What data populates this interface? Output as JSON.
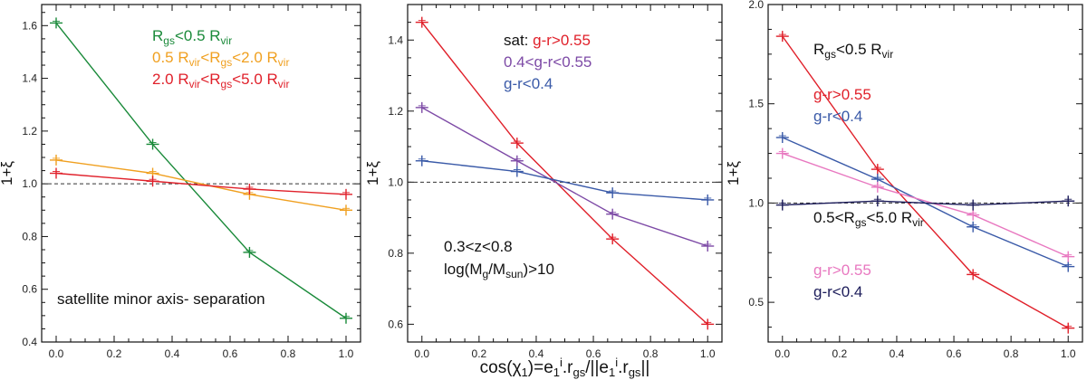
{
  "chart_data": [
    {
      "type": "line",
      "ylabel": "1+ξ",
      "x": [
        0.0,
        0.333,
        0.667,
        1.0
      ],
      "xticks": [
        "0.0",
        "0.2",
        "0.4",
        "0.6",
        "0.8",
        "1.0"
      ],
      "xtick_values": [
        0.0,
        0.2,
        0.4,
        0.6,
        0.8,
        1.0
      ],
      "xlim": [
        -0.05,
        1.05
      ],
      "ylim": [
        0.4,
        1.68
      ],
      "yticks": [
        "0.4",
        "0.6",
        "0.8",
        "1.0",
        "1.2",
        "1.4",
        "1.6"
      ],
      "ytick_values": [
        0.4,
        0.6,
        0.8,
        1.0,
        1.2,
        1.4,
        1.6
      ],
      "reference_line": 1.0,
      "series": [
        {
          "name": "Rgs<0.5 Rvir",
          "color": "#1a8a3a",
          "values": [
            1.61,
            1.15,
            0.74,
            0.49
          ]
        },
        {
          "name": "0.5 Rvir<Rgs<2.0 Rvir",
          "color": "#f0a020",
          "values": [
            1.09,
            1.04,
            0.96,
            0.9
          ]
        },
        {
          "name": "2.0 Rvir<Rgs<5.0 Rvir",
          "color": "#e0202a",
          "values": [
            1.04,
            1.01,
            0.98,
            0.96
          ]
        }
      ],
      "legend_lines": [
        {
          "parts": [
            {
              "t": "R",
              "c": "#1a8a3a"
            },
            {
              "t": "gs",
              "sub": true,
              "c": "#1a8a3a"
            },
            {
              "t": "<0.5 R",
              "c": "#1a8a3a"
            },
            {
              "t": "vir",
              "sub": true,
              "c": "#1a8a3a"
            }
          ]
        },
        {
          "parts": [
            {
              "t": "0.5 R",
              "c": "#f0a020"
            },
            {
              "t": "vir",
              "sub": true,
              "c": "#f0a020"
            },
            {
              "t": "<R",
              "c": "#f0a020"
            },
            {
              "t": "gs",
              "sub": true,
              "c": "#f0a020"
            },
            {
              "t": "<2.0 R",
              "c": "#f0a020"
            },
            {
              "t": "vir",
              "sub": true,
              "c": "#f0a020"
            }
          ]
        },
        {
          "parts": [
            {
              "t": "2.0 R",
              "c": "#e0202a"
            },
            {
              "t": "vir",
              "sub": true,
              "c": "#e0202a"
            },
            {
              "t": "<R",
              "c": "#e0202a"
            },
            {
              "t": "gs",
              "sub": true,
              "c": "#e0202a"
            },
            {
              "t": "<5.0 R",
              "c": "#e0202a"
            },
            {
              "t": "vir",
              "sub": true,
              "c": "#e0202a"
            }
          ]
        }
      ],
      "annotations": [
        {
          "parts": [
            {
              "t": "satellite minor axis- separation"
            }
          ]
        }
      ]
    },
    {
      "type": "line",
      "ylabel": "1+ξ",
      "xlabel": "cos(χ1)=e1i.rgs/||e1i.rgs||",
      "x": [
        0.0,
        0.333,
        0.667,
        1.0
      ],
      "xticks": [
        "0.0",
        "0.2",
        "0.4",
        "0.6",
        "0.8",
        "1.0"
      ],
      "xtick_values": [
        0.0,
        0.2,
        0.4,
        0.6,
        0.8,
        1.0
      ],
      "xlim": [
        -0.05,
        1.05
      ],
      "ylim": [
        0.55,
        1.5
      ],
      "yticks": [
        "0.6",
        "0.8",
        "1.0",
        "1.2",
        "1.4"
      ],
      "ytick_values": [
        0.6,
        0.8,
        1.0,
        1.2,
        1.4
      ],
      "reference_line": 1.0,
      "series": [
        {
          "name": "g-r>0.55",
          "color": "#e0202a",
          "values": [
            1.45,
            1.11,
            0.84,
            0.6
          ]
        },
        {
          "name": "0.4<g-r<0.55",
          "color": "#7d4aa6",
          "values": [
            1.21,
            1.06,
            0.91,
            0.82
          ]
        },
        {
          "name": "g-r<0.4",
          "color": "#3a5aa8",
          "values": [
            1.06,
            1.03,
            0.97,
            0.95
          ]
        }
      ],
      "legend_lines": [
        {
          "parts": [
            {
              "t": "sat:  ",
              "c": "#111111"
            },
            {
              "t": "g-r>0.55",
              "c": "#e0202a"
            }
          ]
        },
        {
          "parts": [
            {
              "t": "        ",
              "c": "#111111"
            },
            {
              "t": "0.4<g-r<0.55",
              "c": "#7d4aa6"
            }
          ]
        },
        {
          "parts": [
            {
              "t": "        ",
              "c": "#111111"
            },
            {
              "t": "g-r<0.4",
              "c": "#3a5aa8"
            }
          ]
        }
      ],
      "annotations": [
        {
          "parts": [
            {
              "t": "0.3<z<0.8"
            }
          ]
        },
        {
          "parts": [
            {
              "t": "log(M"
            },
            {
              "t": "g",
              "sub": true
            },
            {
              "t": "/M"
            },
            {
              "t": "sun",
              "sub": true
            },
            {
              "t": ")>10"
            }
          ]
        }
      ]
    },
    {
      "type": "line",
      "ylabel": "1+ξ",
      "x": [
        0.0,
        0.333,
        0.667,
        1.0
      ],
      "xticks": [
        "0.0",
        "0.2",
        "0.4",
        "0.6",
        "0.8",
        "1.0"
      ],
      "xtick_values": [
        0.0,
        0.2,
        0.4,
        0.6,
        0.8,
        1.0
      ],
      "xlim": [
        -0.05,
        1.05
      ],
      "ylim": [
        0.3,
        2.0
      ],
      "yticks": [
        "0.5",
        "1.0",
        "1.5",
        "2.0"
      ],
      "ytick_values": [
        0.5,
        1.0,
        1.5,
        2.0
      ],
      "reference_line": 1.0,
      "series": [
        {
          "name": "g-r>0.55 (Rgs<0.5 Rvir)",
          "color": "#e0202a",
          "values": [
            1.84,
            1.17,
            0.64,
            0.37
          ]
        },
        {
          "name": "g-r<0.4 (Rgs<0.5 Rvir)",
          "color": "#3a5aa8",
          "values": [
            1.33,
            1.12,
            0.88,
            0.68
          ]
        },
        {
          "name": "g-r>0.55 (0.5<Rgs<5.0 Rvir)",
          "color": "#e878c0",
          "values": [
            1.25,
            1.08,
            0.94,
            0.73
          ]
        },
        {
          "name": "g-r<0.4 (0.5<Rgs<5.0 Rvir)",
          "color": "#1c1c5a",
          "values": [
            0.99,
            1.01,
            0.99,
            1.01
          ]
        }
      ],
      "legend_lines": [
        {
          "parts": [
            {
              "t": "R",
              "c": "#111111"
            },
            {
              "t": "gs",
              "sub": true,
              "c": "#111111"
            },
            {
              "t": "<0.5 R",
              "c": "#111111"
            },
            {
              "t": "vir",
              "sub": true,
              "c": "#111111"
            }
          ]
        },
        {
          "parts": [
            {
              "t": "g-r>0.55",
              "c": "#e0202a"
            }
          ]
        },
        {
          "parts": [
            {
              "t": "g-r<0.4",
              "c": "#3a5aa8"
            }
          ]
        },
        {
          "parts": [
            {
              "t": "0.5<R",
              "c": "#111111"
            },
            {
              "t": "gs",
              "sub": true,
              "c": "#111111"
            },
            {
              "t": "<5.0 R",
              "c": "#111111"
            },
            {
              "t": "vir",
              "sub": true,
              "c": "#111111"
            }
          ]
        },
        {
          "parts": [
            {
              "t": "g-r>0.55",
              "c": "#e878c0"
            }
          ]
        },
        {
          "parts": [
            {
              "t": "g-r<0.4",
              "c": "#1c1c5a"
            }
          ]
        }
      ],
      "annotations": []
    }
  ]
}
